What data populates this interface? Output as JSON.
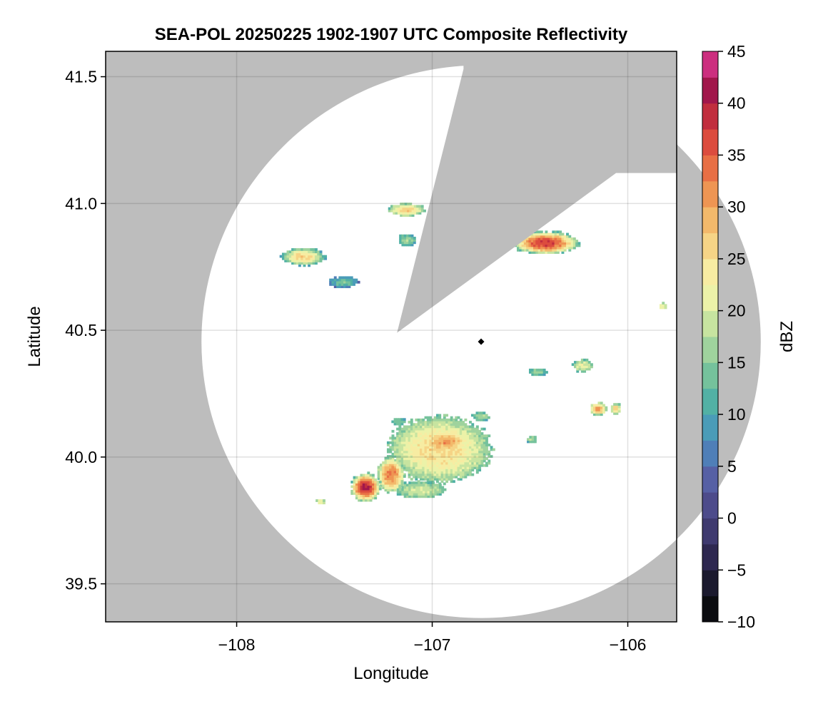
{
  "chart_data": {
    "type": "heatmap",
    "title": "SEA-POL 20250225 1902-1907 UTC Composite Reflectivity",
    "xlabel": "Longitude",
    "ylabel": "Latitude",
    "xlim": [
      -108.67,
      -105.75
    ],
    "ylim": [
      39.35,
      41.6
    ],
    "x_ticks": [
      -108,
      -107,
      -106
    ],
    "x_tick_labels": [
      "−108",
      "−107",
      "−106"
    ],
    "y_ticks": [
      39.5,
      40.0,
      40.5,
      41.0,
      41.5
    ],
    "y_tick_labels": [
      "39.5",
      "40.0",
      "40.5",
      "41.0",
      "41.5"
    ],
    "grid": true,
    "no_data_color": "#bdbdbd",
    "radar": {
      "center_lon": -106.75,
      "center_lat": 40.455,
      "range_lon": 1.43,
      "range_lat": 1.09,
      "blocked_sector_apex": [
        -107.18,
        40.49
      ],
      "blocked_sector_edges": [
        [
          -106.84,
          41.53
        ],
        [
          -106.06,
          41.12
        ]
      ]
    },
    "colorbar": {
      "label": "dBZ",
      "min": -10,
      "max": 45,
      "step": 2.5,
      "ticks": [
        -10,
        -5,
        0,
        5,
        10,
        15,
        20,
        25,
        30,
        35,
        40,
        45
      ],
      "tick_labels": [
        "−10",
        "−5",
        "0",
        "5",
        "10",
        "15",
        "20",
        "25",
        "30",
        "35",
        "40",
        "45"
      ],
      "colors": [
        "#0b0c10",
        "#1b1a2e",
        "#2e2850",
        "#3f3a6f",
        "#4d4b8b",
        "#5660a5",
        "#4f7fb8",
        "#4a9cb8",
        "#52b1a5",
        "#75c29c",
        "#9fd39d",
        "#c7e4a0",
        "#ecf2a8",
        "#f7eca2",
        "#f6d486",
        "#f3b96b",
        "#ee9553",
        "#e86f45",
        "#dc4c3e",
        "#c12e3e",
        "#a1174b",
        "#cc2f7f",
        "#df5b9e",
        "#e88cbd",
        "#b989c7",
        "#9063b0",
        "#6a2f8c",
        "#4e0f5f"
      ]
    },
    "marker": {
      "lon": -106.75,
      "lat": 40.455,
      "shape": "diamond"
    },
    "echoes": [
      {
        "lon": -107.13,
        "lat": 40.975,
        "rlon": 0.09,
        "rlat": 0.025,
        "base_dbz": 14,
        "peak_dbz": 27
      },
      {
        "lon": -107.13,
        "lat": 40.855,
        "rlon": 0.045,
        "rlat": 0.022,
        "base_dbz": 10,
        "peak_dbz": 17
      },
      {
        "lon": -107.66,
        "lat": 40.79,
        "rlon": 0.11,
        "rlat": 0.035,
        "base_dbz": 10,
        "peak_dbz": 27
      },
      {
        "lon": -107.45,
        "lat": 40.69,
        "rlon": 0.075,
        "rlat": 0.022,
        "base_dbz": 6,
        "peak_dbz": 15
      },
      {
        "lon": -106.42,
        "lat": 40.845,
        "rlon": 0.17,
        "rlat": 0.045,
        "base_dbz": 12,
        "peak_dbz": 38
      },
      {
        "lon": -106.23,
        "lat": 40.36,
        "rlon": 0.05,
        "rlat": 0.025,
        "base_dbz": 12,
        "peak_dbz": 22
      },
      {
        "lon": -106.46,
        "lat": 40.335,
        "rlon": 0.05,
        "rlat": 0.015,
        "base_dbz": 10,
        "peak_dbz": 16
      },
      {
        "lon": -106.15,
        "lat": 40.19,
        "rlon": 0.045,
        "rlat": 0.025,
        "base_dbz": 14,
        "peak_dbz": 31
      },
      {
        "lon": -106.06,
        "lat": 40.19,
        "rlon": 0.025,
        "rlat": 0.022,
        "base_dbz": 14,
        "peak_dbz": 27
      },
      {
        "lon": -106.75,
        "lat": 40.16,
        "rlon": 0.045,
        "rlat": 0.018,
        "base_dbz": 10,
        "peak_dbz": 18
      },
      {
        "lon": -106.49,
        "lat": 40.07,
        "rlon": 0.025,
        "rlat": 0.015,
        "base_dbz": 10,
        "peak_dbz": 18
      },
      {
        "lon": -105.82,
        "lat": 40.595,
        "rlon": 0.018,
        "rlat": 0.012,
        "base_dbz": 18,
        "peak_dbz": 22
      },
      {
        "lon": -106.96,
        "lat": 40.03,
        "rlon": 0.26,
        "rlat": 0.13,
        "base_dbz": 14,
        "peak_dbz": 26
      },
      {
        "lon": -106.93,
        "lat": 40.06,
        "rlon": 0.12,
        "rlat": 0.04,
        "base_dbz": 18,
        "peak_dbz": 31
      },
      {
        "lon": -107.21,
        "lat": 39.93,
        "rlon": 0.07,
        "rlat": 0.07,
        "base_dbz": 14,
        "peak_dbz": 33
      },
      {
        "lon": -107.34,
        "lat": 39.88,
        "rlon": 0.075,
        "rlat": 0.055,
        "base_dbz": 14,
        "peak_dbz": 41
      },
      {
        "lon": -107.17,
        "lat": 40.14,
        "rlon": 0.035,
        "rlat": 0.015,
        "base_dbz": 10,
        "peak_dbz": 15
      },
      {
        "lon": -107.57,
        "lat": 39.825,
        "rlon": 0.025,
        "rlat": 0.012,
        "base_dbz": 14,
        "peak_dbz": 22
      },
      {
        "lon": -107.06,
        "lat": 39.87,
        "rlon": 0.13,
        "rlat": 0.035,
        "base_dbz": 12,
        "peak_dbz": 20
      }
    ]
  }
}
